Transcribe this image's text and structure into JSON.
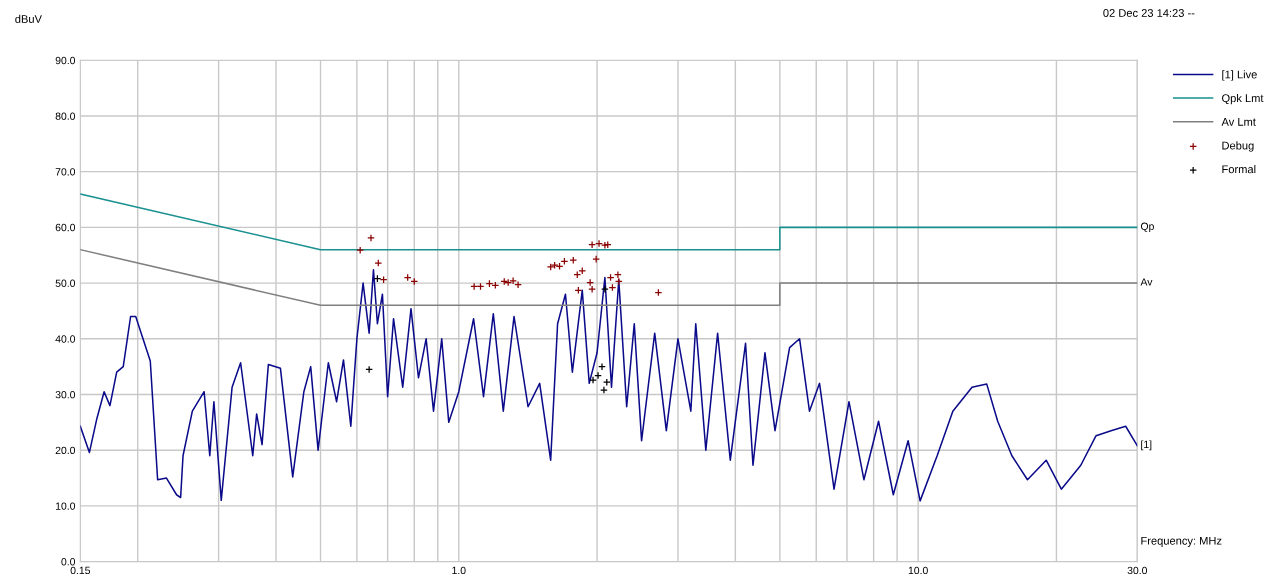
{
  "chart_data": {
    "type": "line",
    "xlabel": "Frequency: MHz",
    "ylabel": "dBuV",
    "annotations": [
      "02 Dec 23 14:23 --",
      "Qp",
      "Av",
      "[1]"
    ],
    "log": "x",
    "xlim": [
      0.15,
      30
    ],
    "ylim": [
      0,
      90
    ],
    "xticks": [
      {
        "value": 0.15,
        "label": "0.15"
      },
      {
        "value": 0.2,
        "label": null
      },
      {
        "value": 0.3,
        "label": null
      },
      {
        "value": 0.4,
        "label": null
      },
      {
        "value": 0.5,
        "label": null
      },
      {
        "value": 0.6,
        "label": null
      },
      {
        "value": 0.7,
        "label": null
      },
      {
        "value": 0.8,
        "label": null
      },
      {
        "value": 0.9,
        "label": null
      },
      {
        "value": 1,
        "label": "1.0"
      },
      {
        "value": 2,
        "label": null
      },
      {
        "value": 3,
        "label": null
      },
      {
        "value": 4,
        "label": null
      },
      {
        "value": 5,
        "label": null
      },
      {
        "value": 6,
        "label": null
      },
      {
        "value": 7,
        "label": null
      },
      {
        "value": 8,
        "label": null
      },
      {
        "value": 9,
        "label": null
      },
      {
        "value": 10,
        "label": "10.0"
      },
      {
        "value": 20,
        "label": null
      },
      {
        "value": 30,
        "label": "30.0"
      }
    ],
    "yticks": [
      {
        "value": 0,
        "label": "0.0"
      },
      {
        "value": 10,
        "label": "10.0"
      },
      {
        "value": 20,
        "label": "20.0"
      },
      {
        "value": 30,
        "label": "30.0"
      },
      {
        "value": 40,
        "label": "40.0"
      },
      {
        "value": 50,
        "label": "50.0"
      },
      {
        "value": 60,
        "label": "60.0"
      },
      {
        "value": 70,
        "label": "70.0"
      },
      {
        "value": 80,
        "label": "80.0"
      },
      {
        "value": 90,
        "label": "90.0"
      }
    ],
    "grid": true,
    "legend": "right",
    "line_style": "solid",
    "series": [
      {
        "name": "[1] Live",
        "color": "#0a0a8a",
        "x": [
          0.15,
          0.157,
          0.163,
          0.169,
          0.174,
          0.18,
          0.186,
          0.193,
          0.198,
          0.213,
          0.221,
          0.231,
          0.243,
          0.248,
          0.251,
          0.263,
          0.279,
          0.287,
          0.293,
          0.304,
          0.321,
          0.335,
          0.356,
          0.363,
          0.373,
          0.385,
          0.409,
          0.435,
          0.46,
          0.476,
          0.494,
          0.52,
          0.542,
          0.561,
          0.582,
          0.6,
          0.619,
          0.638,
          0.652,
          0.665,
          0.682,
          0.7,
          0.721,
          0.755,
          0.787,
          0.817,
          0.849,
          0.881,
          0.918,
          0.951,
          1.0,
          1.077,
          1.132,
          1.189,
          1.25,
          1.319,
          1.415,
          1.5,
          1.585,
          1.641,
          1.707,
          1.767,
          1.857,
          1.923,
          2.0,
          2.08,
          2.15,
          2.23,
          2.32,
          2.41,
          2.5,
          2.67,
          2.83,
          3.0,
          3.2,
          3.28,
          3.45,
          3.66,
          3.9,
          4.21,
          4.37,
          4.64,
          4.88,
          5.25,
          5.52,
          5.8,
          6.1,
          6.56,
          7.07,
          7.62,
          8.2,
          8.83,
          9.51,
          10.1,
          11.0,
          11.9,
          13.1,
          14.1,
          14.9,
          16.0,
          17.3,
          19.0,
          20.5,
          22.6,
          24.4,
          26.3,
          28.3,
          30.0
        ],
        "values": [
          24.3,
          19.6,
          25.7,
          30.5,
          28,
          34,
          35,
          44,
          44,
          36,
          14.7,
          15,
          12,
          11.5,
          19,
          27,
          30.5,
          19,
          28.7,
          11,
          31.3,
          35.7,
          19,
          26.5,
          21,
          35.4,
          34.7,
          15.2,
          30.5,
          35,
          20,
          35.7,
          28.7,
          36.2,
          24.3,
          40,
          50,
          41,
          52.4,
          42.7,
          48,
          29.6,
          43.6,
          31.3,
          45.4,
          33,
          40,
          27,
          40,
          25,
          30.5,
          43.6,
          29.6,
          44.5,
          27,
          44,
          27.8,
          32,
          18.2,
          42.7,
          48,
          34,
          48.7,
          32,
          37.5,
          51,
          31.3,
          50.6,
          27.8,
          42.7,
          21.7,
          41,
          23.5,
          40,
          27,
          42.7,
          20,
          41,
          18.2,
          39.2,
          17.3,
          37.5,
          23.5,
          38.4,
          40,
          27,
          32,
          13,
          28.7,
          14.7,
          25.2,
          12,
          21.7,
          10.9,
          19,
          27,
          31.3,
          31.9,
          25.2,
          19,
          14.7,
          18.2,
          13,
          17.3,
          22.6,
          23.5,
          24.3,
          20.8
        ]
      },
      {
        "name": "Qpk Lmt",
        "color": "#1a9090",
        "x": [
          0.15,
          0.5,
          5,
          5,
          30
        ],
        "values": [
          66,
          56,
          56,
          60,
          60
        ]
      },
      {
        "name": "Av Lmt",
        "color": "#808080",
        "x": [
          0.15,
          0.5,
          5,
          5,
          30
        ],
        "values": [
          56,
          46,
          46,
          50,
          50
        ]
      },
      {
        "name": "Debug",
        "type": "scatter",
        "marker": "cross",
        "color": "#8b0000",
        "x": [
          0.61,
          0.644,
          0.668,
          0.686,
          0.774,
          0.8,
          1.08,
          1.115,
          1.166,
          1.201,
          1.256,
          1.281,
          1.313,
          1.346,
          1.585,
          1.617,
          1.657,
          1.698,
          1.775,
          1.857,
          1.811,
          1.821,
          1.951,
          1.991,
          2.02,
          2.08,
          2.11,
          1.932,
          2.14,
          2.22,
          2.23,
          2.72,
          1.951,
          2.16
        ],
        "values": [
          55.9,
          58.1,
          53.6,
          50.6,
          51,
          50.3,
          49.4,
          49.4,
          49.9,
          49.6,
          50.3,
          50.1,
          50.4,
          49.7,
          52.9,
          53.2,
          53,
          53.9,
          54.1,
          52.2,
          51.5,
          48.7,
          56.9,
          54.3,
          57.1,
          56.8,
          56.9,
          50.1,
          51,
          51.5,
          50.3,
          48.3,
          48.9,
          49.2
        ]
      },
      {
        "name": "Formal",
        "type": "scatter",
        "marker": "cross",
        "color": "#000000",
        "x": [
          0.638,
          0.665,
          1.96,
          2.01,
          2.05,
          2.07,
          2.1,
          2.08
        ],
        "values": [
          34.5,
          50.8,
          32.6,
          33.4,
          35,
          30.8,
          32.2,
          48.9
        ]
      }
    ]
  }
}
